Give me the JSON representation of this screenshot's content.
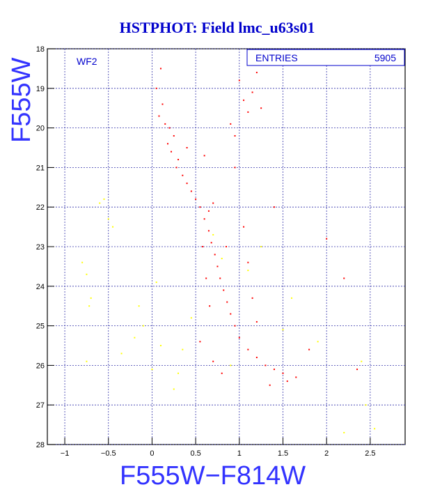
{
  "chart_data": {
    "type": "scatter",
    "title": "HSTPHOT: Field lmc_u63s01",
    "panel_label": "WF2",
    "xlabel": "F555W−F814W",
    "ylabel": "F555W",
    "xlim": [
      -1.2,
      2.9
    ],
    "ylim": [
      28,
      18
    ],
    "y_inverted": true,
    "grid": true,
    "x_ticks": [
      -1,
      -0.5,
      0,
      0.5,
      1,
      1.5,
      2,
      2.5
    ],
    "x_tick_labels": [
      "−1",
      "−0.5",
      "0",
      "0.5",
      "1",
      "1.5",
      "2",
      "2.5"
    ],
    "y_ticks": [
      18,
      19,
      20,
      21,
      22,
      23,
      24,
      25,
      26,
      27,
      28
    ],
    "y_tick_labels": [
      "18",
      "19",
      "20",
      "21",
      "22",
      "23",
      "24",
      "25",
      "26",
      "27",
      "28"
    ],
    "stats": {
      "label": "ENTRIES",
      "value": "5905"
    },
    "series": [
      {
        "color": "#ff0000",
        "points": [
          [
            0.1,
            18.5
          ],
          [
            0.05,
            19.0
          ],
          [
            0.12,
            19.4
          ],
          [
            0.08,
            19.7
          ],
          [
            0.15,
            19.9
          ],
          [
            0.2,
            20.0
          ],
          [
            0.25,
            20.2
          ],
          [
            0.18,
            20.4
          ],
          [
            0.22,
            20.6
          ],
          [
            0.3,
            20.8
          ],
          [
            0.28,
            21.0
          ],
          [
            0.35,
            21.2
          ],
          [
            0.4,
            21.4
          ],
          [
            0.45,
            21.6
          ],
          [
            0.5,
            21.8
          ],
          [
            0.55,
            22.0
          ],
          [
            0.6,
            22.3
          ],
          [
            0.65,
            22.6
          ],
          [
            0.68,
            22.9
          ],
          [
            0.72,
            23.2
          ],
          [
            0.75,
            23.5
          ],
          [
            0.78,
            23.8
          ],
          [
            0.82,
            24.1
          ],
          [
            0.86,
            24.4
          ],
          [
            0.9,
            24.7
          ],
          [
            0.95,
            25.0
          ],
          [
            1.0,
            25.3
          ],
          [
            1.1,
            25.6
          ],
          [
            1.2,
            25.8
          ],
          [
            1.3,
            26.0
          ],
          [
            1.4,
            26.1
          ],
          [
            1.5,
            26.2
          ],
          [
            1.0,
            18.8
          ],
          [
            1.05,
            19.3
          ],
          [
            1.1,
            19.6
          ],
          [
            0.95,
            20.2
          ],
          [
            1.15,
            19.1
          ],
          [
            1.2,
            18.6
          ],
          [
            1.4,
            22.0
          ],
          [
            2.0,
            22.8
          ],
          [
            2.2,
            23.8
          ],
          [
            2.35,
            26.1
          ],
          [
            1.8,
            25.6
          ],
          [
            0.9,
            19.9
          ],
          [
            1.25,
            19.5
          ],
          [
            0.6,
            20.7
          ],
          [
            0.4,
            20.5
          ],
          [
            0.7,
            21.9
          ],
          [
            0.95,
            21.0
          ],
          [
            1.05,
            22.5
          ],
          [
            1.1,
            23.4
          ],
          [
            1.15,
            24.3
          ],
          [
            1.2,
            24.9
          ],
          [
            0.58,
            23.0
          ],
          [
            0.62,
            23.8
          ],
          [
            0.66,
            24.5
          ],
          [
            0.55,
            25.4
          ],
          [
            0.7,
            25.9
          ],
          [
            0.8,
            26.2
          ],
          [
            1.55,
            26.4
          ],
          [
            1.65,
            26.3
          ],
          [
            1.35,
            26.5
          ],
          [
            0.65,
            22.1
          ],
          [
            0.85,
            23.0
          ]
        ]
      },
      {
        "color": "#ffff00",
        "points": [
          [
            -0.6,
            21.9
          ],
          [
            -0.5,
            22.3
          ],
          [
            -0.45,
            22.5
          ],
          [
            -0.8,
            23.4
          ],
          [
            -0.75,
            23.7
          ],
          [
            -0.7,
            24.3
          ],
          [
            -0.72,
            24.5
          ],
          [
            -0.1,
            25.0
          ],
          [
            -0.2,
            25.3
          ],
          [
            -0.35,
            25.7
          ],
          [
            0.0,
            26.1
          ],
          [
            0.3,
            26.2
          ],
          [
            0.45,
            24.8
          ],
          [
            0.7,
            22.7
          ],
          [
            0.8,
            23.3
          ],
          [
            1.6,
            24.3
          ],
          [
            1.9,
            25.4
          ],
          [
            2.45,
            27.0
          ],
          [
            2.55,
            27.6
          ],
          [
            2.2,
            27.7
          ],
          [
            -0.75,
            25.9
          ],
          [
            0.1,
            25.5
          ],
          [
            0.25,
            26.6
          ],
          [
            1.1,
            23.6
          ],
          [
            1.5,
            25.1
          ],
          [
            0.05,
            23.9
          ],
          [
            -0.55,
            21.8
          ],
          [
            0.9,
            26.0
          ],
          [
            0.35,
            25.6
          ],
          [
            -0.15,
            24.5
          ],
          [
            1.25,
            23.0
          ],
          [
            2.4,
            25.9
          ]
        ]
      }
    ]
  }
}
